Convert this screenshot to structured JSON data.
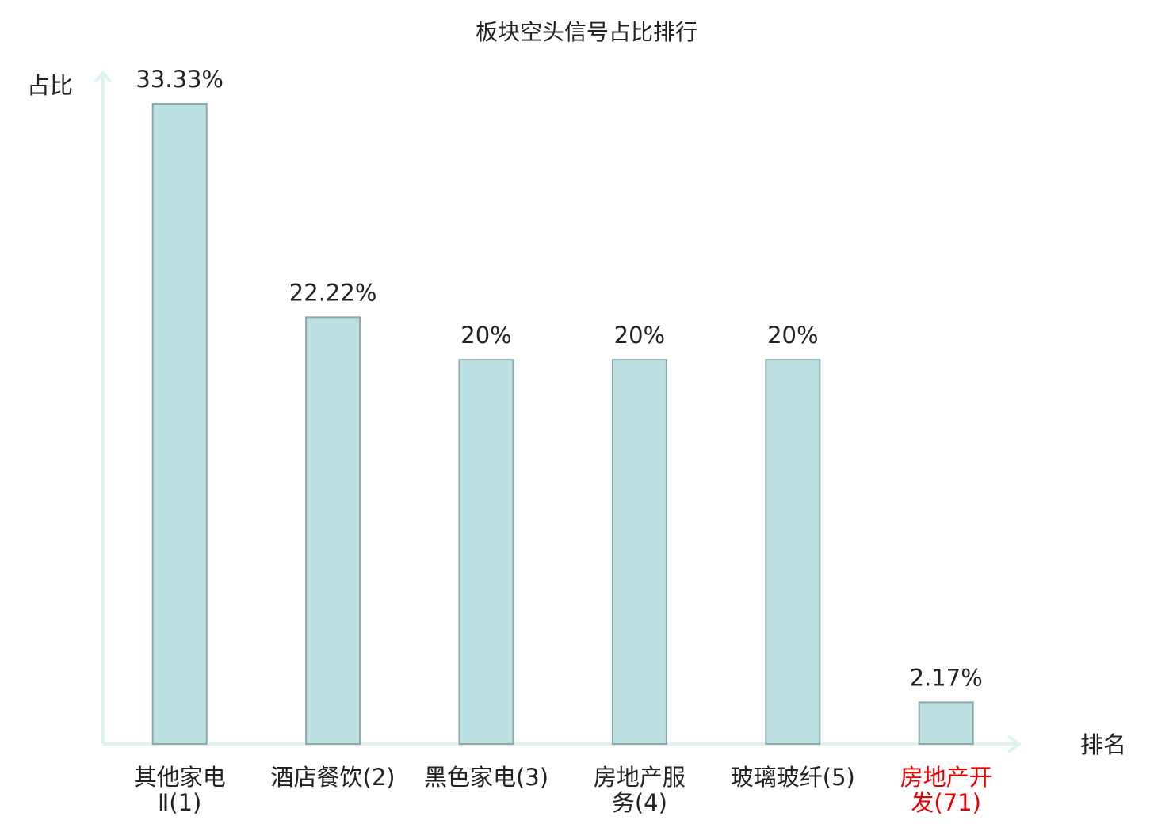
{
  "chart_data": {
    "type": "bar",
    "title": "板块空头信号占比排行",
    "y_label": "占比",
    "x_label": "排名",
    "categories": [
      "其他家电Ⅱ(1)",
      "酒店餐饮(2)",
      "黑色家电(3)",
      "房地产服务(4)",
      "玻璃玻纤(5)",
      "房地产开发(71)"
    ],
    "values": [
      33.33,
      22.22,
      20,
      20,
      20,
      2.17
    ],
    "value_labels": [
      "33.33%",
      "22.22%",
      "20%",
      "20%",
      "20%",
      "2.17%"
    ],
    "color": "#bde0e3",
    "edge_color": "#8aa8ab",
    "label_colors": [
      "#222222",
      "#222222",
      "#222222",
      "#222222",
      "#222222",
      "#e60000"
    ]
  }
}
